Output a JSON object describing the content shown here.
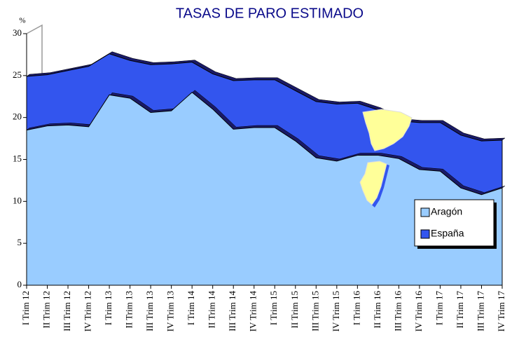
{
  "chart_data": {
    "type": "area",
    "title": "TASAS DE PARO ESTIMADO",
    "y_label": "%",
    "categories": [
      "I Trim 12",
      "II Trim 12",
      "III Trim 12",
      "IV Trim 12",
      "I Trim 13",
      "II Trim 13",
      "III Trim 13",
      "IV Trim 13",
      "I Trim 14",
      "II Trim 14",
      "III Trim 14",
      "IV Trim 14",
      "I Trim 15",
      "II Trim 15",
      "III Trim 15",
      "IV Trim 15",
      "I Trim 16",
      "II Trim 16",
      "III Trim 16",
      "IV Trim 16",
      "I Trim 17",
      "II Trim 17",
      "III Trim 17",
      "IV Trim 17"
    ],
    "series": [
      {
        "name": "España",
        "color": "#3355ee",
        "values": [
          24.9,
          25.1,
          25.6,
          26.1,
          27.6,
          26.8,
          26.3,
          26.4,
          26.6,
          25.2,
          24.4,
          24.5,
          24.5,
          23.2,
          21.9,
          21.6,
          21.7,
          20.9,
          19.6,
          19.4,
          19.4,
          17.9,
          17.2,
          17.3
        ]
      },
      {
        "name": "Aragón",
        "color": "#99ccff",
        "values": [
          18.5,
          19.0,
          19.1,
          18.9,
          22.7,
          22.3,
          20.6,
          20.8,
          23.0,
          21.0,
          18.6,
          18.8,
          18.8,
          17.2,
          15.2,
          14.8,
          15.5,
          15.5,
          15.1,
          13.8,
          13.6,
          11.6,
          10.8,
          11.6
        ]
      }
    ],
    "ylim": [
      0,
      30
    ],
    "yticks": [
      0,
      5,
      10,
      15,
      20,
      25,
      30
    ],
    "legend": "lower right",
    "grid": false
  }
}
